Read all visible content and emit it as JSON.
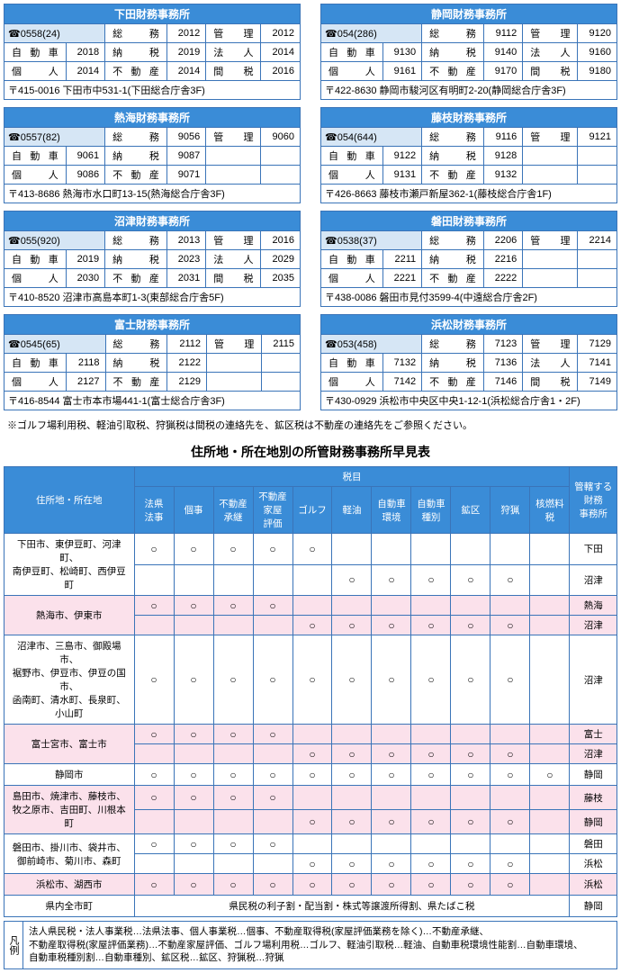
{
  "offices": [
    {
      "name": "下田財務事務所",
      "tel": "☎0558(24)",
      "rows": [
        [
          "総　務",
          "2012",
          "管　理",
          "2012"
        ],
        [
          "自 動 車",
          "2018",
          "納　税",
          "2019",
          "法　人",
          "2014"
        ],
        [
          "個　人",
          "2014",
          "不 動 産",
          "2014",
          "間　税",
          "2016"
        ]
      ],
      "addr": "〒415-0016 下田市中531-1(下田総合庁舎3F)"
    },
    {
      "name": "静岡財務事務所",
      "tel": "☎054(286)",
      "rows": [
        [
          "総　務",
          "9112",
          "管　理",
          "9120"
        ],
        [
          "自 動 車",
          "9130",
          "納　税",
          "9140",
          "法　人",
          "9160"
        ],
        [
          "個　人",
          "9161",
          "不 動 産",
          "9170",
          "間　税",
          "9180"
        ]
      ],
      "addr": "〒422-8630 静岡市駿河区有明町2-20(静岡総合庁舎3F)"
    },
    {
      "name": "熱海財務事務所",
      "tel": "☎0557(82)",
      "rows": [
        [
          "総　務",
          "9056",
          "管　理",
          "9060"
        ],
        [
          "自 動 車",
          "9061",
          "納　税",
          "9087",
          "",
          ""
        ],
        [
          "個　人",
          "9086",
          "不 動 産",
          "9071",
          "",
          ""
        ]
      ],
      "addr": "〒413-8686 熱海市水口町13-15(熱海総合庁舎3F)"
    },
    {
      "name": "藤枝財務事務所",
      "tel": "☎054(644)",
      "rows": [
        [
          "総　務",
          "9116",
          "管　理",
          "9121"
        ],
        [
          "自 動 車",
          "9122",
          "納　税",
          "9128",
          "",
          ""
        ],
        [
          "個　人",
          "9131",
          "不 動 産",
          "9132",
          "",
          ""
        ]
      ],
      "addr": "〒426-8663 藤枝市瀬戸新屋362-1(藤枝総合庁舎1F)"
    },
    {
      "name": "沼津財務事務所",
      "tel": "☎055(920)",
      "rows": [
        [
          "総　務",
          "2013",
          "管　理",
          "2016"
        ],
        [
          "自 動 車",
          "2019",
          "納　税",
          "2023",
          "法　人",
          "2029"
        ],
        [
          "個　人",
          "2030",
          "不 動 産",
          "2031",
          "間　税",
          "2035"
        ]
      ],
      "addr": "〒410-8520 沼津市高島本町1-3(東部総合庁舎5F)"
    },
    {
      "name": "磐田財務事務所",
      "tel": "☎0538(37)",
      "rows": [
        [
          "総　務",
          "2206",
          "管　理",
          "2214"
        ],
        [
          "自 動 車",
          "2211",
          "納　税",
          "2216",
          "",
          ""
        ],
        [
          "個　人",
          "2221",
          "不 動 産",
          "2222",
          "",
          ""
        ]
      ],
      "addr": "〒438-0086 磐田市見付3599-4(中遠総合庁舎2F)"
    },
    {
      "name": "富士財務事務所",
      "tel": "☎0545(65)",
      "rows": [
        [
          "総　務",
          "2112",
          "管　理",
          "2115"
        ],
        [
          "自 動 車",
          "2118",
          "納　税",
          "2122",
          "",
          ""
        ],
        [
          "個　人",
          "2127",
          "不 動 産",
          "2129",
          "",
          ""
        ]
      ],
      "addr": "〒416-8544 富士市本市場441-1(富士総合庁舎3F)"
    },
    {
      "name": "浜松財務事務所",
      "tel": "☎053(458)",
      "rows": [
        [
          "総　務",
          "7123",
          "管　理",
          "7129"
        ],
        [
          "自 動 車",
          "7132",
          "納　税",
          "7136",
          "法　人",
          "7141"
        ],
        [
          "個　人",
          "7142",
          "不 動 産",
          "7146",
          "間　税",
          "7149"
        ]
      ],
      "addr": "〒430-0929 浜松市中央区中央1-12-1(浜松総合庁舎1・2F)"
    }
  ],
  "note": "※ゴルフ場利用税、軽油引取税、狩猟税は間税の連絡先を、鉱区税は不動産の連絡先をご参照ください。",
  "title2": "住所地・所在地別の所管財務事務所早見表",
  "ref": {
    "h1": "住所地・所在地",
    "h2": "税目",
    "h3": "管轄する\n財務\n事務所",
    "cols": [
      "法県\n法事",
      "個事",
      "不動産\n承継",
      "不動産\n家屋\n評価",
      "ゴルフ",
      "軽油",
      "自動車\n環境",
      "自動車\n種別",
      "鉱区",
      "狩猟",
      "核燃料\n税"
    ],
    "rows": [
      {
        "loc": "下田市、東伊豆町、河津町、\n南伊豆町、松崎町、西伊豆町",
        "span": 2,
        "cells": [
          "○",
          "○",
          "○",
          "○",
          "○",
          "",
          "",
          "",
          "",
          "",
          ""
        ],
        "off": [
          "下田",
          "沼津"
        ],
        "cells2": [
          "",
          "",
          "",
          "",
          "",
          "○",
          "○",
          "○",
          "○",
          "○",
          ""
        ],
        "pink": false
      },
      {
        "loc": "熱海市、伊東市",
        "span": 2,
        "cells": [
          "○",
          "○",
          "○",
          "○",
          "",
          "",
          "",
          "",
          "",
          "",
          ""
        ],
        "off": [
          "熱海",
          "沼津"
        ],
        "cells2": [
          "",
          "",
          "",
          "",
          "○",
          "○",
          "○",
          "○",
          "○",
          "○",
          ""
        ],
        "pink": true
      },
      {
        "loc": "沼津市、三島市、御殿場市、\n裾野市、伊豆市、伊豆の国市、\n函南町、清水町、長泉町、小山町",
        "span": 1,
        "cells": [
          "○",
          "○",
          "○",
          "○",
          "○",
          "○",
          "○",
          "○",
          "○",
          "○",
          ""
        ],
        "off": [
          "沼津"
        ],
        "pink": false
      },
      {
        "loc": "富士宮市、富士市",
        "span": 2,
        "cells": [
          "○",
          "○",
          "○",
          "○",
          "",
          "",
          "",
          "",
          "",
          "",
          ""
        ],
        "off": [
          "富士",
          "沼津"
        ],
        "cells2": [
          "",
          "",
          "",
          "",
          "○",
          "○",
          "○",
          "○",
          "○",
          "○",
          ""
        ],
        "pink": true
      },
      {
        "loc": "静岡市",
        "span": 1,
        "cells": [
          "○",
          "○",
          "○",
          "○",
          "○",
          "○",
          "○",
          "○",
          "○",
          "○",
          "○"
        ],
        "off": [
          "静岡"
        ],
        "pink": false
      },
      {
        "loc": "島田市、焼津市、藤枝市、\n牧之原市、吉田町、川根本町",
        "span": 2,
        "cells": [
          "○",
          "○",
          "○",
          "○",
          "",
          "",
          "",
          "",
          "",
          "",
          ""
        ],
        "off": [
          "藤枝",
          "静岡"
        ],
        "cells2": [
          "",
          "",
          "",
          "",
          "○",
          "○",
          "○",
          "○",
          "○",
          "○",
          ""
        ],
        "pink": true
      },
      {
        "loc": "磐田市、掛川市、袋井市、\n御前崎市、菊川市、森町",
        "span": 2,
        "cells": [
          "○",
          "○",
          "○",
          "○",
          "",
          "",
          "",
          "",
          "",
          "",
          ""
        ],
        "off": [
          "磐田",
          "浜松"
        ],
        "cells2": [
          "",
          "",
          "",
          "",
          "○",
          "○",
          "○",
          "○",
          "○",
          "○",
          ""
        ],
        "pink": false
      },
      {
        "loc": "浜松市、湖西市",
        "span": 1,
        "cells": [
          "○",
          "○",
          "○",
          "○",
          "○",
          "○",
          "○",
          "○",
          "○",
          "○",
          ""
        ],
        "off": [
          "浜松"
        ],
        "pink": true
      }
    ],
    "bottom": {
      "loc": "県内全市町",
      "text": "県民税の利子割・配当割・株式等譲渡所得割、県たばこ税",
      "off": "静岡"
    }
  },
  "legend": {
    "lab": "凡例",
    "text": "法人県民税・法人事業税…法県法事、個人事業税…個事、不動産取得税(家屋評価業務を除く)…不動産承継、\n不動産取得税(家屋評価業務)…不動産家屋評価、ゴルフ場利用税…ゴルフ、軽油引取税…軽油、自動車税環境性能割…自動車環境、\n自動車税種別割…自動車種別、鉱区税…鉱区、狩猟税…狩猟"
  }
}
